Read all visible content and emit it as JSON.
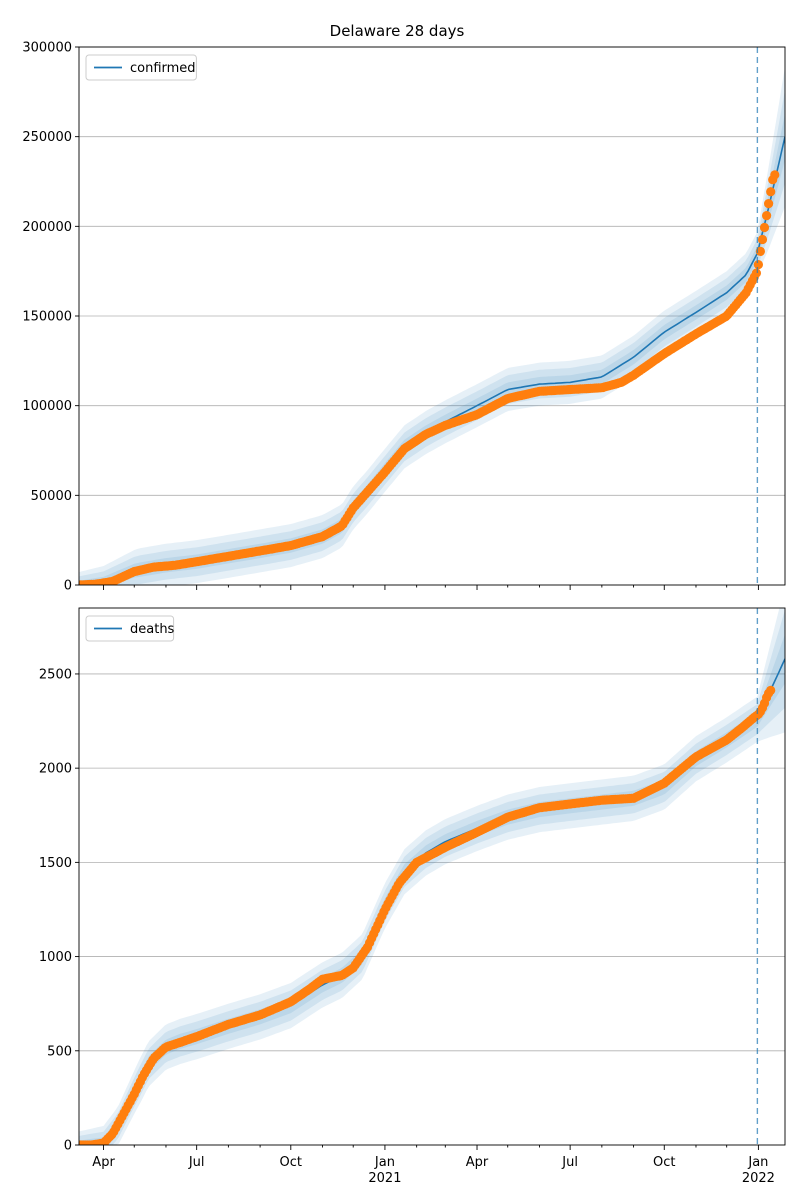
{
  "figure": {
    "title": "Delaware 28 days"
  },
  "colors": {
    "model_line": "#1f77b4",
    "observed_points": "#ff7f0e",
    "band": "#1f77b4",
    "grid": "#b0b0b0",
    "forecast_start_line": "#1f77b4"
  },
  "chart_data": [
    {
      "type": "line",
      "legend": {
        "entries": [
          "confirmed"
        ],
        "placement": "top-left"
      },
      "xlim": [
        "2020-03-08",
        "2022-01-27"
      ],
      "ylim": [
        0,
        300000
      ],
      "y_ticks": [
        0,
        50000,
        100000,
        150000,
        200000,
        250000,
        300000
      ],
      "y_tick_labels": [
        "0",
        "50000",
        "100000",
        "150000",
        "200000",
        "250000",
        "300000"
      ],
      "x_tick_labels_shown": false,
      "grid": "horizontal",
      "forecast_start": "2021-12-31",
      "series": [
        {
          "name": "confirmed",
          "role": "model",
          "x": [
            "2020-03-08",
            "2020-04-01",
            "2020-05-01",
            "2020-06-01",
            "2020-07-01",
            "2020-08-01",
            "2020-09-01",
            "2020-10-01",
            "2020-11-01",
            "2020-11-20",
            "2020-12-01",
            "2020-12-15",
            "2021-01-01",
            "2021-01-20",
            "2021-02-10",
            "2021-03-01",
            "2021-04-01",
            "2021-05-01",
            "2021-06-01",
            "2021-07-01",
            "2021-08-01",
            "2021-09-01",
            "2021-10-01",
            "2021-11-01",
            "2021-12-01",
            "2021-12-20",
            "2021-12-31",
            "2022-01-10",
            "2022-01-27"
          ],
          "y": [
            0,
            1500,
            8000,
            11000,
            13000,
            16000,
            19000,
            22000,
            27000,
            33000,
            43000,
            52000,
            64000,
            77000,
            85000,
            91000,
            100000,
            109000,
            112000,
            113000,
            116000,
            127000,
            141000,
            152000,
            163000,
            173000,
            185000,
            208000,
            250000
          ],
          "band_widths": [
            4000,
            8000,
            12000
          ]
        },
        {
          "name": "confirmed observed",
          "role": "observed",
          "x": [
            "2020-03-08",
            "2020-03-25",
            "2020-04-10",
            "2020-05-01",
            "2020-05-20",
            "2020-06-10",
            "2020-07-01",
            "2020-08-01",
            "2020-09-01",
            "2020-10-01",
            "2020-11-01",
            "2020-11-20",
            "2020-12-01",
            "2020-12-15",
            "2021-01-01",
            "2021-01-20",
            "2021-02-10",
            "2021-03-01",
            "2021-04-01",
            "2021-05-01",
            "2021-06-01",
            "2021-07-01",
            "2021-08-01",
            "2021-08-20",
            "2021-09-01",
            "2021-10-01",
            "2021-11-01",
            "2021-12-01",
            "2021-12-20",
            "2021-12-31",
            "2022-01-03",
            "2022-01-06",
            "2022-01-09",
            "2022-01-12",
            "2022-01-15",
            "2022-01-18"
          ],
          "y": [
            0,
            500,
            2000,
            7500,
            10000,
            11000,
            13000,
            16000,
            19000,
            22000,
            27000,
            33000,
            43000,
            52000,
            63000,
            76000,
            84000,
            89000,
            95000,
            104000,
            108000,
            109000,
            110000,
            113000,
            117000,
            129000,
            140000,
            150000,
            163000,
            175000,
            186000,
            196000,
            206000,
            216000,
            226000,
            230000
          ]
        }
      ]
    },
    {
      "type": "line",
      "legend": {
        "entries": [
          "deaths"
        ],
        "placement": "top-left"
      },
      "xlim": [
        "2020-03-08",
        "2022-01-27"
      ],
      "ylim": [
        0,
        2850
      ],
      "y_ticks": [
        0,
        500,
        1000,
        1500,
        2000,
        2500
      ],
      "y_tick_labels": [
        "0",
        "500",
        "1000",
        "1500",
        "2000",
        "2500"
      ],
      "x_tick_labels": [
        "Apr",
        "Jul",
        "Oct",
        "Jan",
        "Apr",
        "Jul",
        "Oct",
        "Jan"
      ],
      "x_tick_years": [
        "",
        "",
        "",
        "2021",
        "",
        "",
        "",
        "2022"
      ],
      "x_tick_dates": [
        "2020-04-01",
        "2020-07-01",
        "2020-10-01",
        "2021-01-01",
        "2021-04-01",
        "2021-07-01",
        "2021-10-01",
        "2022-01-01"
      ],
      "grid": "horizontal",
      "forecast_start": "2021-12-31",
      "series": [
        {
          "name": "deaths",
          "role": "model",
          "x": [
            "2020-03-08",
            "2020-04-01",
            "2020-04-15",
            "2020-05-01",
            "2020-05-15",
            "2020-06-01",
            "2020-06-15",
            "2020-07-01",
            "2020-08-01",
            "2020-09-01",
            "2020-10-01",
            "2020-11-01",
            "2020-11-20",
            "2020-12-10",
            "2021-01-01",
            "2021-01-20",
            "2021-02-10",
            "2021-03-01",
            "2021-04-01",
            "2021-05-01",
            "2021-06-01",
            "2021-07-01",
            "2021-08-01",
            "2021-09-01",
            "2021-10-01",
            "2021-11-01",
            "2021-12-01",
            "2021-12-31",
            "2022-01-10",
            "2022-01-27"
          ],
          "y": [
            0,
            10,
            100,
            280,
            430,
            520,
            550,
            575,
            630,
            680,
            740,
            850,
            900,
            1000,
            1270,
            1450,
            1550,
            1610,
            1680,
            1740,
            1780,
            1800,
            1820,
            1840,
            1900,
            2050,
            2150,
            2260,
            2380,
            2580
          ],
          "band_widths": [
            40,
            80,
            120
          ]
        },
        {
          "name": "deaths observed",
          "role": "observed",
          "x": [
            "2020-03-08",
            "2020-03-20",
            "2020-04-01",
            "2020-04-10",
            "2020-04-20",
            "2020-05-01",
            "2020-05-10",
            "2020-05-20",
            "2020-06-01",
            "2020-06-15",
            "2020-07-01",
            "2020-08-01",
            "2020-09-01",
            "2020-10-01",
            "2020-10-20",
            "2020-11-01",
            "2020-11-20",
            "2020-12-01",
            "2020-12-15",
            "2021-01-01",
            "2021-01-15",
            "2021-02-01",
            "2021-03-01",
            "2021-04-01",
            "2021-05-01",
            "2021-06-01",
            "2021-07-01",
            "2021-08-01",
            "2021-09-01",
            "2021-10-01",
            "2021-11-01",
            "2021-12-01",
            "2021-12-15",
            "2021-12-28",
            "2022-01-02",
            "2022-01-06",
            "2022-01-10",
            "2022-01-14"
          ],
          "y": [
            0,
            0,
            10,
            60,
            160,
            270,
            370,
            460,
            520,
            545,
            575,
            640,
            690,
            760,
            830,
            880,
            900,
            940,
            1050,
            1250,
            1390,
            1500,
            1580,
            1660,
            1740,
            1790,
            1810,
            1830,
            1840,
            1920,
            2060,
            2150,
            2210,
            2270,
            2290,
            2330,
            2390,
            2420
          ]
        }
      ]
    }
  ]
}
